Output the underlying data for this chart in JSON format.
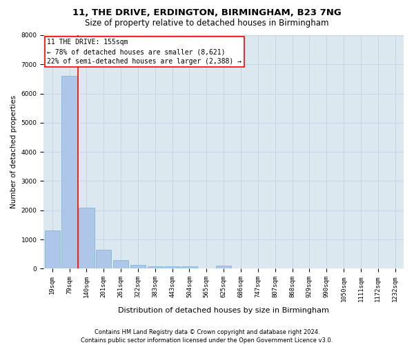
{
  "title": "11, THE DRIVE, ERDINGTON, BIRMINGHAM, B23 7NG",
  "subtitle": "Size of property relative to detached houses in Birmingham",
  "xlabel": "Distribution of detached houses by size in Birmingham",
  "ylabel": "Number of detached properties",
  "categories": [
    "19sqm",
    "79sqm",
    "140sqm",
    "201sqm",
    "261sqm",
    "322sqm",
    "383sqm",
    "443sqm",
    "504sqm",
    "565sqm",
    "625sqm",
    "686sqm",
    "747sqm",
    "807sqm",
    "868sqm",
    "929sqm",
    "990sqm",
    "1050sqm",
    "1111sqm",
    "1172sqm",
    "1232sqm"
  ],
  "values": [
    1300,
    6600,
    2090,
    650,
    280,
    130,
    90,
    80,
    80,
    0,
    110,
    0,
    0,
    0,
    0,
    0,
    0,
    0,
    0,
    0,
    0
  ],
  "bar_color": "#aec6e8",
  "bar_edge_color": "#7aafd4",
  "annotation_text": "11 THE DRIVE: 155sqm\n← 78% of detached houses are smaller (8,621)\n22% of semi-detached houses are larger (2,388) →",
  "annotation_box_color": "white",
  "annotation_box_edge_color": "red",
  "vline_color": "red",
  "vline_x": 1.5,
  "ylim": [
    0,
    8000
  ],
  "yticks": [
    0,
    1000,
    2000,
    3000,
    4000,
    5000,
    6000,
    7000,
    8000
  ],
  "grid_color": "#c8d4e8",
  "background_color": "#dce8f0",
  "footer_line1": "Contains HM Land Registry data © Crown copyright and database right 2024.",
  "footer_line2": "Contains public sector information licensed under the Open Government Licence v3.0.",
  "title_fontsize": 9.5,
  "subtitle_fontsize": 8.5,
  "xlabel_fontsize": 8,
  "ylabel_fontsize": 7.5,
  "tick_fontsize": 6.5,
  "annotation_fontsize": 7,
  "footer_fontsize": 6
}
